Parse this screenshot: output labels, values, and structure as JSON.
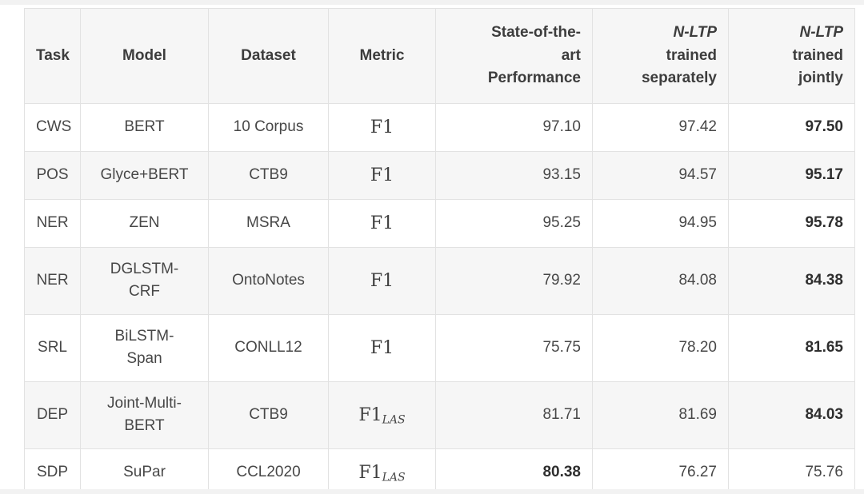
{
  "page": {
    "edge_band_color": "#f2f2f2",
    "background": "#ffffff"
  },
  "colors": {
    "border": "#e2e2e2",
    "header_and_alt_row_bg": "#f6f6f6",
    "header_text": "#3d3d3d",
    "body_text": "#474747",
    "bold_value_text": "#2e2e2e"
  },
  "table": {
    "headers": {
      "task": "Task",
      "model": "Model",
      "dataset": "Dataset",
      "metric": "Metric",
      "sota": "State-of-the-\nart\nPerformance",
      "nltp_separately": {
        "em": "N-LTP",
        "rest": "trained\nseparately"
      },
      "nltp_jointly": {
        "em": "N-LTP",
        "rest": "trained\njointly"
      }
    },
    "rows": [
      {
        "task": "CWS",
        "model": "BERT",
        "dataset": "10 Corpus",
        "metric": {
          "base": "F1",
          "sub": ""
        },
        "sota": {
          "text": "97.10",
          "bold": false
        },
        "separately": {
          "text": "97.42",
          "bold": false
        },
        "jointly": {
          "text": "97.50",
          "bold": true
        }
      },
      {
        "task": "POS",
        "model": "Glyce+BERT",
        "dataset": "CTB9",
        "metric": {
          "base": "F1",
          "sub": ""
        },
        "sota": {
          "text": "93.15",
          "bold": false
        },
        "separately": {
          "text": "94.57",
          "bold": false
        },
        "jointly": {
          "text": "95.17",
          "bold": true
        }
      },
      {
        "task": "NER",
        "model": "ZEN",
        "dataset": "MSRA",
        "metric": {
          "base": "F1",
          "sub": ""
        },
        "sota": {
          "text": "95.25",
          "bold": false
        },
        "separately": {
          "text": "94.95",
          "bold": false
        },
        "jointly": {
          "text": "95.78",
          "bold": true
        }
      },
      {
        "task": "NER",
        "model": "DGLSTM-\nCRF",
        "dataset": "OntoNotes",
        "metric": {
          "base": "F1",
          "sub": ""
        },
        "sota": {
          "text": "79.92",
          "bold": false
        },
        "separately": {
          "text": "84.08",
          "bold": false
        },
        "jointly": {
          "text": "84.38",
          "bold": true
        }
      },
      {
        "task": "SRL",
        "model": "BiLSTM-\nSpan",
        "dataset": "CONLL12",
        "metric": {
          "base": "F1",
          "sub": ""
        },
        "sota": {
          "text": "75.75",
          "bold": false
        },
        "separately": {
          "text": "78.20",
          "bold": false
        },
        "jointly": {
          "text": "81.65",
          "bold": true
        }
      },
      {
        "task": "DEP",
        "model": "Joint-Multi-\nBERT",
        "dataset": "CTB9",
        "metric": {
          "base": "F1",
          "sub": "LAS"
        },
        "sota": {
          "text": "81.71",
          "bold": false
        },
        "separately": {
          "text": "81.69",
          "bold": false
        },
        "jointly": {
          "text": "84.03",
          "bold": true
        }
      },
      {
        "task": "SDP",
        "model": "SuPar",
        "dataset": "CCL2020",
        "metric": {
          "base": "F1",
          "sub": "LAS"
        },
        "sota": {
          "text": "80.38",
          "bold": true
        },
        "separately": {
          "text": "76.27",
          "bold": false
        },
        "jointly": {
          "text": "75.76",
          "bold": false
        }
      }
    ]
  }
}
